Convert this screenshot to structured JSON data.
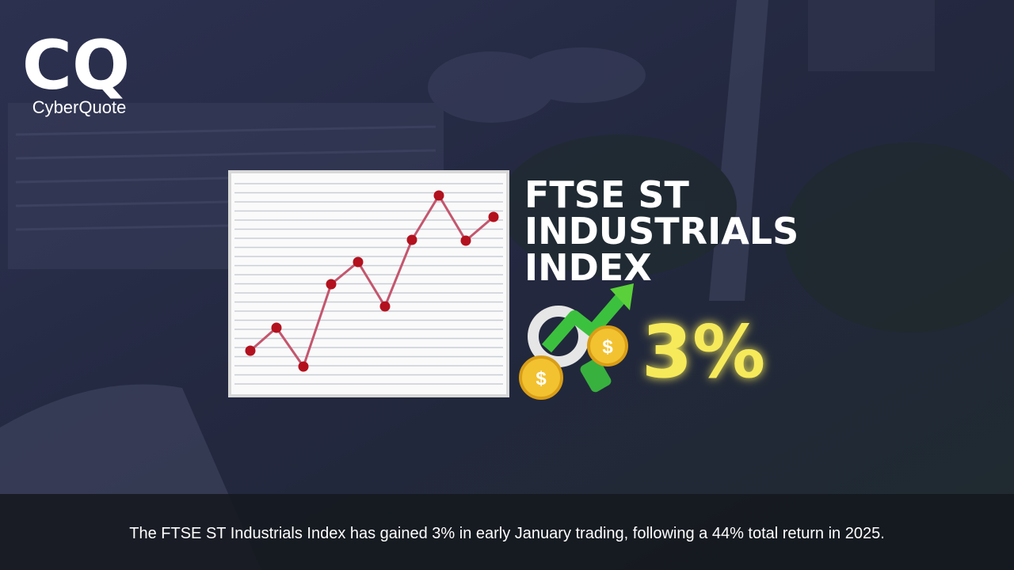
{
  "logo": {
    "mark": "CQ",
    "name": "CyberQuote"
  },
  "headline": {
    "lines": [
      "FTSE ST",
      "INDUSTRIALS",
      "INDEX"
    ],
    "figure": "3%"
  },
  "caption": "The FTSE ST Industrials Index has gained 3% in early January trading, following a 44% total return in 2025."
}
